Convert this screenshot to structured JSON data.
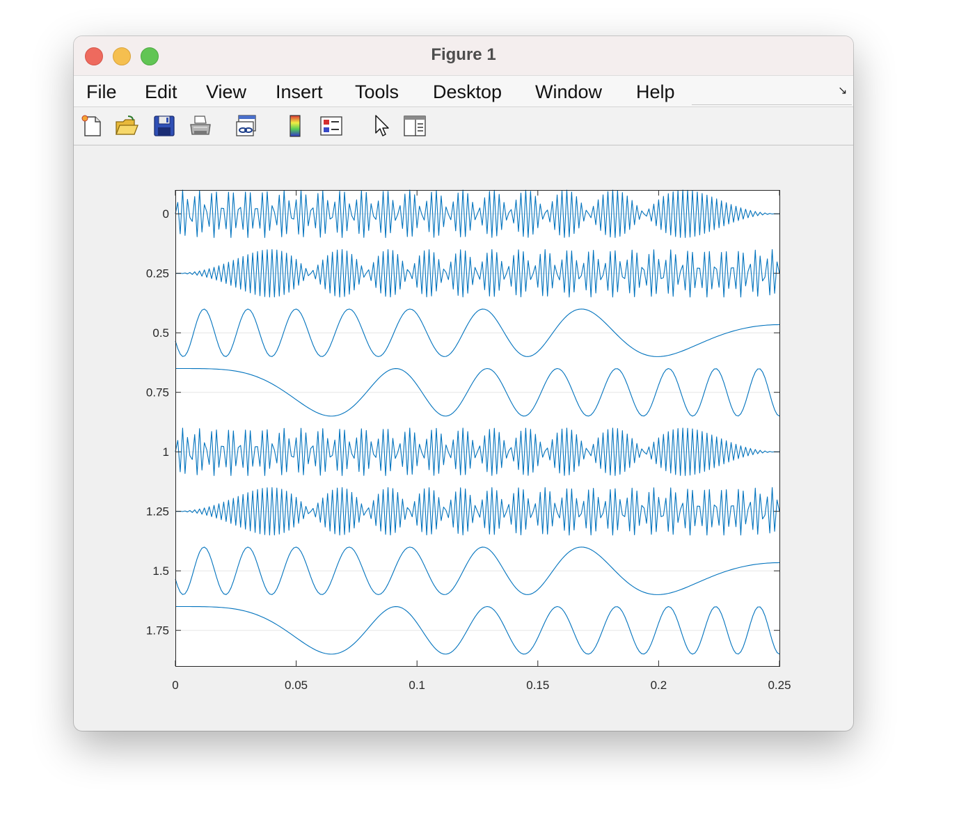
{
  "window": {
    "title": "Figure 1"
  },
  "menu": [
    "File",
    "Edit",
    "View",
    "Insert",
    "Tools",
    "Desktop",
    "Window",
    "Help"
  ],
  "toolbar": [
    {
      "name": "new-figure-icon"
    },
    {
      "name": "open-file-icon"
    },
    {
      "name": "save-icon"
    },
    {
      "name": "print-icon"
    },
    {
      "name": "link-plot-icon"
    },
    {
      "name": "insert-colorbar-icon"
    },
    {
      "name": "insert-legend-icon"
    },
    {
      "name": "edit-plot-pointer-icon"
    },
    {
      "name": "property-inspector-icon"
    }
  ],
  "colors": {
    "line": "#0072bd",
    "grid": "#e6e6e6",
    "axis": "#262626"
  },
  "chart_data": {
    "type": "line",
    "title": "",
    "xlabel": "",
    "ylabel": "",
    "xlim": [
      0,
      0.25
    ],
    "ylim": [
      -0.1,
      1.9
    ],
    "y_reversed": true,
    "grid": "horizontal",
    "xticks": [
      "0",
      "0.05",
      "0.1",
      "0.15",
      "0.2",
      "0.25"
    ],
    "yticks": [
      "0",
      "0.25",
      "0.5",
      "0.75",
      "1",
      "1.25",
      "1.5",
      "1.75"
    ],
    "sample_rate": 1000,
    "amplitude": 0.1,
    "series": [
      {
        "offset": 0.0,
        "kind": "aliased_sweep",
        "f0": 420,
        "f1": 500
      },
      {
        "offset": 0.25,
        "kind": "aliased_sweep",
        "f0": 500,
        "f1": 580
      },
      {
        "offset": 0.5,
        "kind": "chirp",
        "f0": 60,
        "f1": 0,
        "phase_deg": 200
      },
      {
        "offset": 0.75,
        "kind": "chirp",
        "f0": 0,
        "f1": 60,
        "phase_deg": 90
      },
      {
        "offset": 1.0,
        "kind": "aliased_sweep",
        "f0": 420,
        "f1": 500
      },
      {
        "offset": 1.25,
        "kind": "aliased_sweep",
        "f0": 500,
        "f1": 580
      },
      {
        "offset": 1.5,
        "kind": "chirp",
        "f0": 60,
        "f1": 0,
        "phase_deg": 200
      },
      {
        "offset": 1.75,
        "kind": "chirp",
        "f0": 0,
        "f1": 60,
        "phase_deg": 90
      }
    ]
  }
}
